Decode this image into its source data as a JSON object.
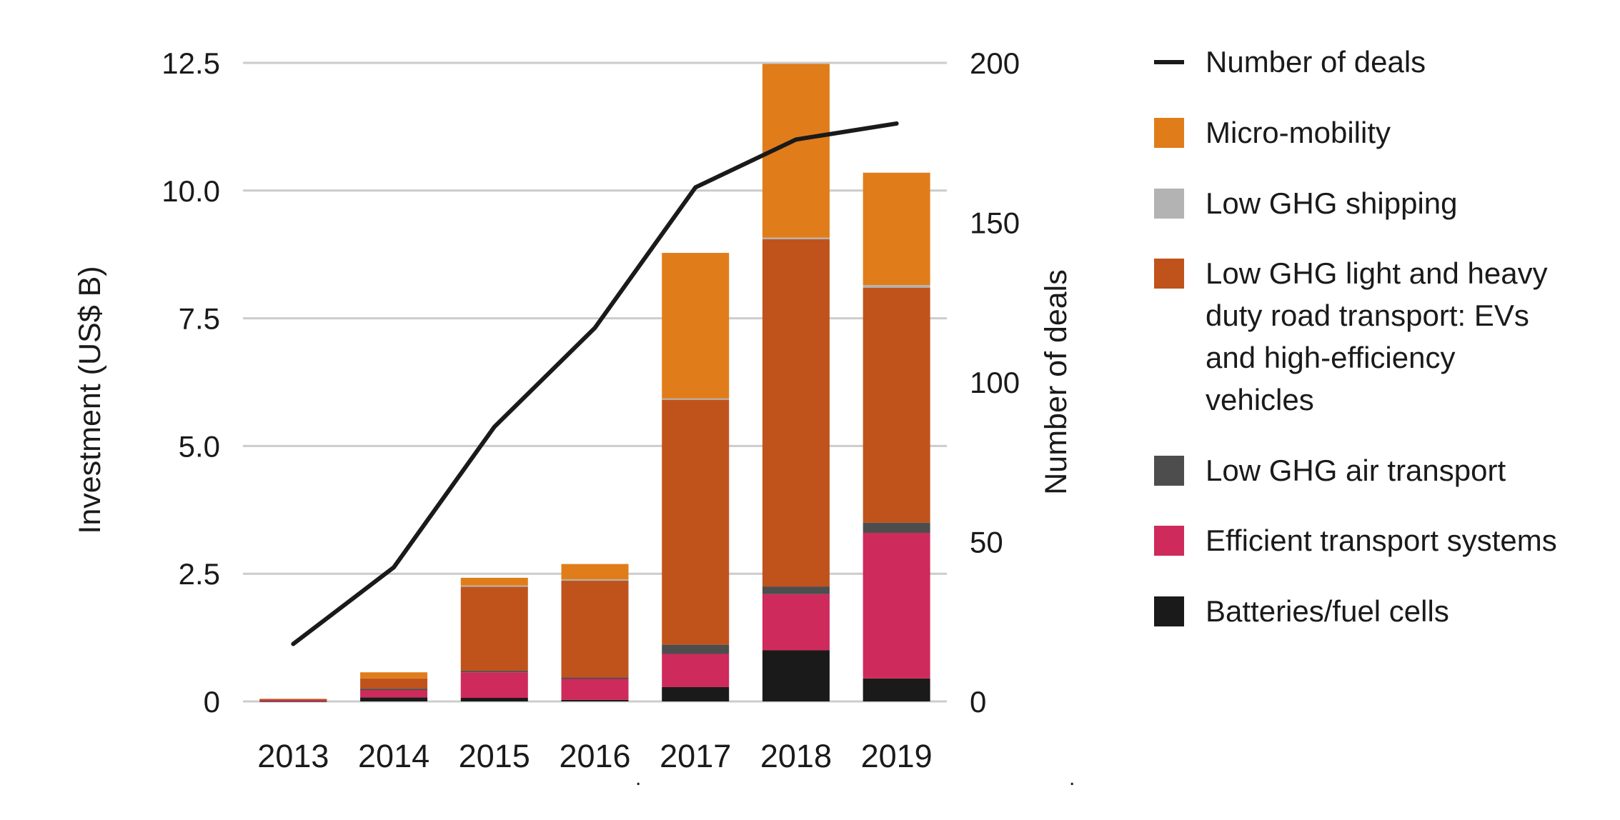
{
  "chart_data": {
    "type": "bar",
    "subtype": "stacked-bars-with-line-overlay",
    "categories": [
      "2013",
      "2014",
      "2015",
      "2016",
      "2017",
      "2018",
      "2019"
    ],
    "bar_series": [
      {
        "name": "Batteries/fuel cells",
        "color": "#1a1a1a",
        "values": [
          0.02,
          0.08,
          0.07,
          0.03,
          0.28,
          1.0,
          0.45
        ]
      },
      {
        "name": "Efficient transport systems",
        "color": "#ce2a5c",
        "values": [
          0.01,
          0.15,
          0.5,
          0.42,
          0.65,
          1.1,
          2.85
        ]
      },
      {
        "name": "Low GHG air transport",
        "color": "#4d4d4d",
        "values": [
          0,
          0.02,
          0.03,
          0.02,
          0.18,
          0.15,
          0.2
        ]
      },
      {
        "name": "Low GHG light and heavy duty road transport: EVs and high-efficiency vehicles",
        "color": "#c0531c",
        "values": [
          0.02,
          0.2,
          1.65,
          1.9,
          4.8,
          6.8,
          4.6
        ]
      },
      {
        "name": "Low GHG shipping",
        "color": "#b3b3b3",
        "values": [
          0,
          0,
          0.02,
          0.02,
          0.02,
          0.03,
          0.05
        ]
      },
      {
        "name": "Micro-mobility",
        "color": "#e07d1a",
        "values": [
          0,
          0.12,
          0.15,
          0.3,
          2.85,
          3.4,
          2.2
        ]
      }
    ],
    "line_series": {
      "name": "Number of deals",
      "color": "#1a1a1a",
      "values": [
        18,
        42,
        86,
        117,
        161,
        176,
        181
      ]
    },
    "left_axis": {
      "label": "Investment (US$ B)",
      "max": 12.5,
      "ticks": [
        {
          "v": 0,
          "t": "0"
        },
        {
          "v": 2.5,
          "t": "2.5"
        },
        {
          "v": 5,
          "t": "5.0"
        },
        {
          "v": 7.5,
          "t": "7.5"
        },
        {
          "v": 10,
          "t": "10.0"
        },
        {
          "v": 12.5,
          "t": "12.5"
        }
      ]
    },
    "right_axis": {
      "label": "Number of deals",
      "max": 200,
      "ticks": [
        {
          "v": 0,
          "t": "0"
        },
        {
          "v": 50,
          "t": "50"
        },
        {
          "v": 100,
          "t": "100"
        },
        {
          "v": 150,
          "t": "150"
        },
        {
          "v": 200,
          "t": "200"
        }
      ]
    },
    "grid": "horizontal",
    "legend_position": "right"
  },
  "legend": {
    "items": [
      {
        "label": "Number of deals",
        "swatch": "line",
        "color": "#1a1a1a"
      },
      {
        "label": "Micro-mobility",
        "swatch": "square",
        "color": "#e07d1a"
      },
      {
        "label": "Low GHG shipping",
        "swatch": "square",
        "color": "#b3b3b3"
      },
      {
        "label": "Low GHG light and heavy duty road transport: EVs and high-efficiency vehicles",
        "swatch": "square",
        "color": "#c0531c"
      },
      {
        "label": "Low GHG air transport",
        "swatch": "square",
        "color": "#4d4d4d"
      },
      {
        "label": "Efficient transport systems",
        "swatch": "square",
        "color": "#ce2a5c"
      },
      {
        "label": "Batteries/fuel cells",
        "swatch": "square",
        "color": "#1a1a1a"
      }
    ]
  },
  "colors": {
    "background": "#ffffff",
    "grid": "#cccccc",
    "text": "#1a1a1a"
  },
  "decor": {
    "stray_dots": [
      ".",
      "."
    ]
  }
}
